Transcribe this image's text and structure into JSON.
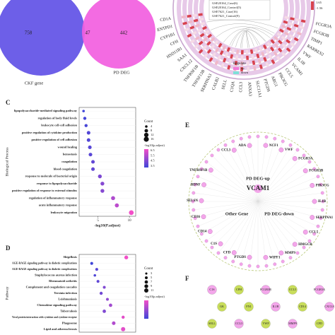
{
  "panel_labels": {
    "c": "C",
    "d": "D",
    "e": "E",
    "f": "F"
  },
  "venn": {
    "left": {
      "label": "CKF gene",
      "value": 758,
      "color": "#6d5fe8"
    },
    "right": {
      "label": "PD DEG",
      "value": 442,
      "color": "#f25ee0"
    },
    "overlap": 47
  },
  "circos": {
    "datasets": [
      "GSE20164_Case(6)",
      "GSE20164_Control(5)",
      "GSE7621_Case(16)",
      "GSE7621_Control(9)"
    ],
    "scale_max": "1.65",
    "scale_min": "-1.56",
    "legend_title": "Regulate",
    "legend_items": [
      {
        "label": "up",
        "color": "#f27ad8"
      },
      {
        "label": "down",
        "color": "#7fe0d8"
      }
    ],
    "genes": [
      "CD1A",
      "ENTPD1",
      "CYP1B1",
      "CFH",
      "HSD11B1",
      "SAA1",
      "CXCL12",
      "TNFRSF1B",
      "TNFSF13B",
      "SERPINA3",
      "CALB2",
      "SELL",
      "C1QA",
      "CCL3",
      "ANXA3",
      "SLC11A1",
      "PTGDS",
      "ARG1",
      "PIK3CG",
      "CCL5",
      "VCAM1",
      "IL1B",
      "VWF",
      "RARRES2",
      "TIMP1",
      "FCGR3B",
      "FCGR3A"
    ],
    "gene_color": "#d13fc2"
  },
  "chart_data": [
    {
      "type": "dot",
      "ylabel": "Biological Process",
      "xlabel": "-log10(P.adjust)",
      "categories": [
        "lipopolysaccharide-mediated signaling pathway",
        "regulation of body fluid levels",
        "leukocyte cell-cell adhesion",
        "positive regulation of cytokine production",
        "positive regulation of cell adhesion",
        "wound healing",
        "hemostasis",
        "coagulation",
        "blood coagulation",
        "response to molecule of bacterial origin",
        "response to lipopolysaccharide",
        "positive regulation of response to external stimulus",
        "regulation of inflammatory response",
        "acute inflammatory response",
        "leukocyte migration"
      ],
      "values": [
        2.7,
        2.9,
        3.1,
        3.5,
        3.5,
        3.7,
        3.8,
        4.2,
        4.2,
        5.3,
        5.7,
        5.7,
        7.4,
        8.0,
        10.3
      ],
      "sizes": [
        4,
        6,
        6,
        8,
        8,
        8,
        8,
        8,
        8,
        9,
        9,
        9,
        10,
        10,
        14
      ],
      "xlim": [
        2,
        11
      ],
      "xticks": [
        5,
        10
      ],
      "size_legend_title": "Count",
      "size_legend": [
        4,
        8,
        12,
        16
      ],
      "color_legend_title": "-log10(p.adjust)",
      "color_legend": [
        6.5,
        5.5,
        4.5,
        3.5
      ],
      "colors": [
        "#3f45d8",
        "#f24fc8"
      ]
    },
    {
      "type": "dot",
      "ylabel": "Pathway",
      "categories": [
        "Shigellosis",
        "AGE-RAGE signaling pathway in diabetic complications",
        "AGE-RAGE signaling pathway in diabetic complications",
        "Staphylococcus aureus infection",
        "Rheumatoid arthritis",
        "Complement and coagulation cascades",
        "Yersinia infection",
        "Leishmaniasis",
        "Chemokine signaling pathway",
        "Tuberculosis",
        "Viral protein interaction with cytokine and cytokine receptor",
        "Phagosome",
        "Lipid and atherosclerosis"
      ],
      "values": [
        9.5,
        4.0,
        4.8,
        4.5,
        5.0,
        6.0,
        5.5,
        6.5,
        7.0,
        6.0,
        9.0,
        7.5,
        9.0
      ],
      "sizes": [
        9,
        5,
        5,
        4,
        5,
        5,
        6,
        5,
        7,
        7,
        6,
        8,
        11
      ],
      "xlim": [
        2,
        11
      ],
      "size_legend_title": "Count",
      "size_legend": [
        3,
        5,
        7,
        9,
        11
      ],
      "color_legend_title": "-log10(p.adjust)",
      "colors": [
        "#3f45d8",
        "#f24fc8"
      ]
    }
  ],
  "network_e": {
    "center": "VCAM1",
    "groups": [
      "PD DEG-up",
      "Other Gene",
      "PD DEG-down"
    ],
    "nodes": [
      "CCL3",
      "ADA",
      "NCF1",
      "VWF",
      "FCGR3A",
      "FCGR3B",
      "PIK3CG",
      "IL1B",
      "SERPINA1",
      "CCL5",
      "HMGCR",
      "MMP9",
      "WIPF1",
      "PTGDS",
      "CFD",
      "C1S",
      "CD14",
      "CD36",
      "SELSN",
      "BDNF",
      "TNFRSF1B"
    ],
    "node_color": "#f3a6ea",
    "ring_color": "#b9c97a"
  },
  "network_f": {
    "nodes": [
      {
        "label": "C1S",
        "group": 0
      },
      {
        "label": "CFH",
        "group": 1
      },
      {
        "label": "FCGR3B",
        "group": 0
      },
      {
        "label": "CCL5",
        "group": 1
      },
      {
        "label": "FCGR3A",
        "group": 0
      },
      {
        "label": "GK",
        "group": 1
      },
      {
        "label": "FN1",
        "group": 1
      },
      {
        "label": "IL1B",
        "group": 0
      },
      {
        "label": "CD14",
        "group": 1
      },
      {
        "label": "CXCL8",
        "group": 0
      },
      {
        "label": "SELL",
        "group": 1
      },
      {
        "label": "CCL3",
        "group": 0
      },
      {
        "label": "VWF",
        "group": 1
      },
      {
        "label": "MMP9",
        "group": 0
      },
      {
        "label": "CFD",
        "group": 1
      }
    ],
    "group_colors": [
      "#f3a6ea",
      "#c8dd5a"
    ]
  }
}
